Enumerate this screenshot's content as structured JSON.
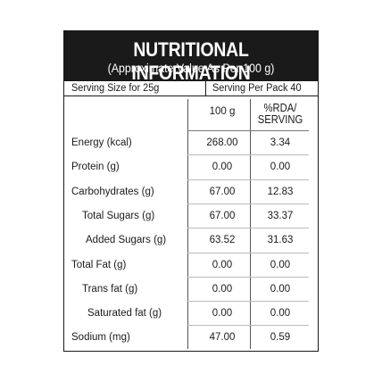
{
  "header": {
    "title": "NUTRITIONAL INFORMATION",
    "subtitle": "(Approximate Value As Per 100 g)"
  },
  "serving": {
    "size": "Serving Size for 25g",
    "per_pack": "Serving Per Pack 40"
  },
  "columns": {
    "per_100g": "100 g",
    "rda_line1": "%RDA/",
    "rda_line2": "SERVING"
  },
  "rows": [
    {
      "label": "Energy (kcal)",
      "per_100g": "268.00",
      "rda": "3.34"
    },
    {
      "label": "Protein (g)",
      "per_100g": "0.00",
      "rda": "0.00"
    },
    {
      "label": "Carbohydrates (g)",
      "per_100g": "67.00",
      "rda": "12.83"
    },
    {
      "label": "Total Sugars (g)",
      "per_100g": "67.00",
      "rda": "33.37"
    },
    {
      "label": "Added Sugars (g)",
      "per_100g": "63.52",
      "rda": "31.63"
    },
    {
      "label": "Total Fat (g)",
      "per_100g": "0.00",
      "rda": "0.00"
    },
    {
      "label": "Trans fat (g)",
      "per_100g": "0.00",
      "rda": "0.00"
    },
    {
      "label": "Saturated fat (g)",
      "per_100g": "0.00",
      "rda": "0.00"
    },
    {
      "label": "Sodium (mg)",
      "per_100g": "47.00",
      "rda": "0.59"
    }
  ],
  "colors": {
    "header_bg": "#1a1a1a",
    "header_text": "#ffffff"
  }
}
